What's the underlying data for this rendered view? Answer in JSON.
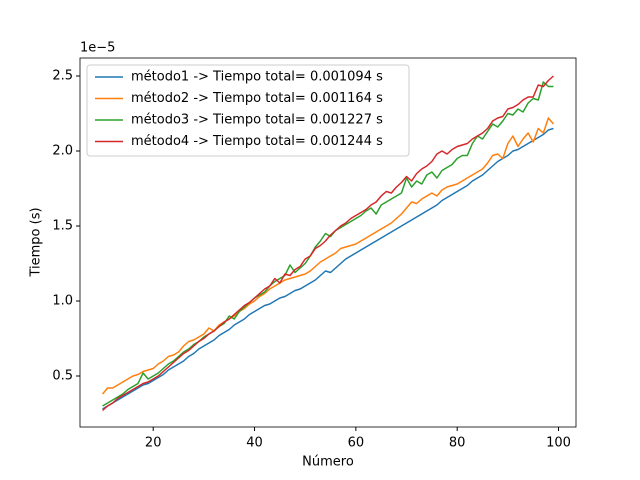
{
  "chart_data": {
    "type": "line",
    "xlabel": "Número",
    "ylabel": "Tiempo (s)",
    "y_offset_text": "1e−5",
    "x": [
      10,
      11,
      12,
      13,
      14,
      15,
      16,
      17,
      18,
      19,
      20,
      21,
      22,
      23,
      24,
      25,
      26,
      27,
      28,
      29,
      30,
      31,
      32,
      33,
      34,
      35,
      36,
      37,
      38,
      39,
      40,
      41,
      42,
      43,
      44,
      45,
      46,
      47,
      48,
      49,
      50,
      51,
      52,
      53,
      54,
      55,
      56,
      57,
      58,
      59,
      60,
      61,
      62,
      63,
      64,
      65,
      66,
      67,
      68,
      69,
      70,
      71,
      72,
      73,
      74,
      75,
      76,
      77,
      78,
      79,
      80,
      81,
      82,
      83,
      84,
      85,
      86,
      87,
      88,
      89,
      90,
      91,
      92,
      93,
      94,
      95,
      96,
      97,
      98,
      99
    ],
    "series": [
      {
        "name": "método1 -> Tiempo total= 0.001094 s",
        "color": "#1f77b4",
        "values": [
          0.28,
          0.3,
          0.32,
          0.34,
          0.36,
          0.38,
          0.4,
          0.42,
          0.44,
          0.45,
          0.47,
          0.49,
          0.51,
          0.54,
          0.56,
          0.58,
          0.6,
          0.63,
          0.65,
          0.68,
          0.7,
          0.72,
          0.74,
          0.77,
          0.79,
          0.81,
          0.84,
          0.86,
          0.88,
          0.91,
          0.93,
          0.95,
          0.97,
          0.98,
          1.0,
          1.02,
          1.03,
          1.05,
          1.07,
          1.08,
          1.1,
          1.12,
          1.14,
          1.17,
          1.2,
          1.19,
          1.22,
          1.25,
          1.28,
          1.3,
          1.32,
          1.34,
          1.36,
          1.38,
          1.4,
          1.42,
          1.44,
          1.46,
          1.48,
          1.5,
          1.52,
          1.54,
          1.56,
          1.58,
          1.6,
          1.62,
          1.64,
          1.67,
          1.69,
          1.71,
          1.73,
          1.75,
          1.77,
          1.8,
          1.82,
          1.84,
          1.87,
          1.9,
          1.93,
          1.95,
          1.97,
          2.0,
          2.01,
          2.03,
          2.05,
          2.07,
          2.09,
          2.11,
          2.14,
          2.15
        ]
      },
      {
        "name": "método2 -> Tiempo total= 0.001164 s",
        "color": "#ff7f0e",
        "values": [
          0.38,
          0.42,
          0.42,
          0.44,
          0.46,
          0.48,
          0.5,
          0.51,
          0.53,
          0.54,
          0.55,
          0.58,
          0.6,
          0.63,
          0.64,
          0.66,
          0.7,
          0.73,
          0.74,
          0.76,
          0.78,
          0.82,
          0.8,
          0.84,
          0.86,
          0.88,
          0.9,
          0.93,
          0.95,
          0.98,
          1.0,
          1.03,
          1.05,
          1.08,
          1.1,
          1.12,
          1.14,
          1.15,
          1.16,
          1.17,
          1.18,
          1.2,
          1.23,
          1.26,
          1.28,
          1.3,
          1.32,
          1.35,
          1.36,
          1.37,
          1.38,
          1.4,
          1.42,
          1.44,
          1.46,
          1.48,
          1.5,
          1.52,
          1.55,
          1.58,
          1.62,
          1.66,
          1.65,
          1.68,
          1.7,
          1.72,
          1.7,
          1.74,
          1.76,
          1.77,
          1.78,
          1.8,
          1.82,
          1.84,
          1.86,
          1.88,
          1.92,
          1.97,
          1.98,
          1.95,
          2.05,
          2.1,
          2.03,
          2.08,
          2.12,
          2.06,
          2.15,
          2.12,
          2.22,
          2.18
        ]
      },
      {
        "name": "método3 -> Tiempo total= 0.001227 s",
        "color": "#2ca02c",
        "values": [
          0.3,
          0.32,
          0.34,
          0.36,
          0.38,
          0.41,
          0.43,
          0.45,
          0.52,
          0.48,
          0.5,
          0.52,
          0.55,
          0.58,
          0.6,
          0.63,
          0.66,
          0.68,
          0.71,
          0.73,
          0.76,
          0.78,
          0.8,
          0.83,
          0.85,
          0.9,
          0.88,
          0.93,
          0.96,
          0.99,
          1.02,
          1.04,
          1.06,
          1.1,
          1.13,
          1.15,
          1.17,
          1.24,
          1.19,
          1.22,
          1.25,
          1.3,
          1.36,
          1.4,
          1.45,
          1.43,
          1.47,
          1.49,
          1.51,
          1.53,
          1.55,
          1.57,
          1.6,
          1.62,
          1.58,
          1.64,
          1.66,
          1.68,
          1.7,
          1.72,
          1.82,
          1.76,
          1.8,
          1.78,
          1.84,
          1.86,
          1.82,
          1.87,
          1.89,
          1.91,
          1.95,
          1.97,
          1.97,
          2.05,
          2.1,
          2.08,
          2.13,
          2.18,
          2.16,
          2.2,
          2.25,
          2.24,
          2.28,
          2.26,
          2.32,
          2.35,
          2.34,
          2.46,
          2.43,
          2.43
        ]
      },
      {
        "name": "método4 -> Tiempo total= 0.001244 s",
        "color": "#d62728",
        "values": [
          0.27,
          0.3,
          0.32,
          0.35,
          0.37,
          0.39,
          0.41,
          0.43,
          0.45,
          0.46,
          0.48,
          0.5,
          0.53,
          0.56,
          0.59,
          0.62,
          0.65,
          0.67,
          0.7,
          0.73,
          0.75,
          0.78,
          0.8,
          0.83,
          0.86,
          0.88,
          0.91,
          0.94,
          0.97,
          0.99,
          1.02,
          1.05,
          1.08,
          1.1,
          1.15,
          1.12,
          1.18,
          1.17,
          1.21,
          1.23,
          1.28,
          1.3,
          1.35,
          1.37,
          1.4,
          1.44,
          1.47,
          1.5,
          1.52,
          1.55,
          1.57,
          1.59,
          1.61,
          1.64,
          1.66,
          1.7,
          1.73,
          1.72,
          1.76,
          1.79,
          1.83,
          1.8,
          1.85,
          1.88,
          1.9,
          1.93,
          1.98,
          2.0,
          1.98,
          2.01,
          2.03,
          2.04,
          2.05,
          2.08,
          2.1,
          2.12,
          2.15,
          2.2,
          2.22,
          2.23,
          2.28,
          2.29,
          2.31,
          2.34,
          2.36,
          2.36,
          2.44,
          2.43,
          2.47,
          2.5
        ]
      }
    ],
    "xlim": [
      5.55,
      103.45
    ],
    "xticks": [
      20,
      40,
      60,
      80,
      100
    ],
    "ylim": [
      0.16,
      2.62
    ],
    "yticks": [
      0.5,
      {
        "value": 1,
        "label": "1.0"
      },
      1.5,
      {
        "value": 2,
        "label": "2.0"
      },
      2.5
    ],
    "grid": false,
    "legend": "upper left"
  }
}
